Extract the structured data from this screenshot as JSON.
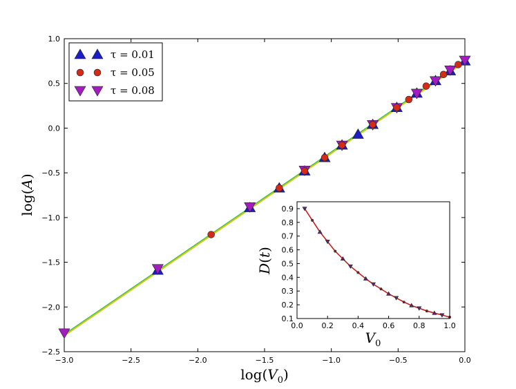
{
  "chart_data": [
    {
      "type": "scatter",
      "role": "main",
      "xlabel": "log(V_0)",
      "ylabel": "log(A)",
      "xlim": [
        -3.0,
        0.0
      ],
      "ylim": [
        -2.5,
        1.0
      ],
      "xticks": [
        "−3.0",
        "−2.5",
        "−2.0",
        "−1.5",
        "−1.0",
        "−0.5",
        "0.0"
      ],
      "yticks": [
        "−2.5",
        "−2.0",
        "−1.5",
        "−1.0",
        "−0.5",
        "0.0",
        "0.5",
        "1.0"
      ],
      "legend": {
        "position": "top-left"
      },
      "series": [
        {
          "name": "τ = 0.01",
          "marker": "triangle-up",
          "color": "#1c1cc8",
          "x": [
            -2.3,
            -1.61,
            -1.39,
            -1.2,
            -1.05,
            -0.92,
            -0.8,
            -0.69,
            -0.51,
            -0.36,
            -0.22,
            -0.11,
            0.0
          ],
          "y": [
            -1.59,
            -0.89,
            -0.67,
            -0.48,
            -0.33,
            -0.19,
            -0.07,
            0.04,
            0.23,
            0.39,
            0.53,
            0.64,
            0.75
          ]
        },
        {
          "name": "τ = 0.05",
          "marker": "circle",
          "color": "#d42a1a",
          "x": [
            -1.9,
            -1.39,
            -1.2,
            -1.05,
            -0.92,
            -0.69,
            -0.51,
            -0.42,
            -0.29,
            -0.16,
            -0.05
          ],
          "y": [
            -1.19,
            -0.67,
            -0.48,
            -0.33,
            -0.19,
            0.04,
            0.23,
            0.32,
            0.47,
            0.6,
            0.71
          ]
        },
        {
          "name": "τ = 0.08",
          "marker": "triangle-down",
          "color": "#a21cc0",
          "x": [
            -3.0,
            -2.3,
            -1.61,
            -1.2,
            -0.92,
            -0.69,
            -0.51,
            -0.36,
            -0.22,
            -0.11,
            0.0
          ],
          "y": [
            -2.29,
            -1.57,
            -0.88,
            -0.47,
            -0.19,
            0.04,
            0.23,
            0.39,
            0.53,
            0.65,
            0.76
          ]
        }
      ],
      "fit_lines": [
        {
          "color": "#2ca0ff",
          "x": [
            -2.3,
            0.0
          ],
          "y": [
            -1.6,
            0.75
          ]
        },
        {
          "color": "#2db84a",
          "x": [
            -3.0,
            0.0
          ],
          "y": [
            -2.31,
            0.75
          ]
        },
        {
          "color": "#c6cc1a",
          "x": [
            -3.0,
            0.0
          ],
          "y": [
            -2.32,
            0.74
          ]
        }
      ]
    },
    {
      "type": "line",
      "role": "inset",
      "xlabel": "V_0",
      "ylabel": "D(t)",
      "xlim": [
        0.0,
        1.0
      ],
      "ylim": [
        0.1,
        0.95
      ],
      "xticks": [
        "0.0",
        "0.2",
        "0.4",
        "0.6",
        "0.8",
        "1.0"
      ],
      "yticks": [
        "0.1",
        "0.2",
        "0.3",
        "0.4",
        "0.5",
        "0.6",
        "0.7",
        "0.8",
        "0.9"
      ],
      "curve_color": "#c81e1e",
      "points": {
        "x": [
          0.05,
          0.1,
          0.15,
          0.2,
          0.25,
          0.3,
          0.35,
          0.4,
          0.45,
          0.5,
          0.55,
          0.6,
          0.65,
          0.7,
          0.75,
          0.8,
          0.85,
          0.9,
          0.95,
          1.0
        ],
        "y": [
          0.9,
          0.815,
          0.73,
          0.66,
          0.59,
          0.535,
          0.48,
          0.435,
          0.39,
          0.35,
          0.315,
          0.28,
          0.25,
          0.22,
          0.195,
          0.175,
          0.155,
          0.14,
          0.125,
          0.11
        ]
      }
    }
  ]
}
